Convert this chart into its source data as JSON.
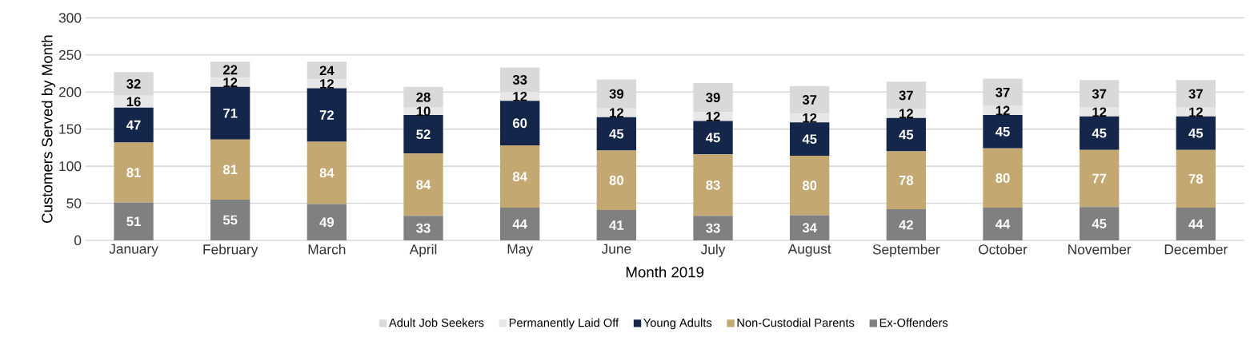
{
  "chart_data": {
    "type": "bar",
    "stacked": true,
    "xlabel": "Month 2019",
    "ylabel": "Customers Served by Month",
    "categories": [
      "January",
      "February",
      "March",
      "April",
      "May",
      "June",
      "July",
      "August",
      "September",
      "October",
      "November",
      "December"
    ],
    "series": [
      {
        "name": "Ex-Offenders",
        "color": "#808080",
        "values": [
          51,
          55,
          49,
          33,
          44,
          41,
          33,
          34,
          42,
          44,
          45,
          44
        ]
      },
      {
        "name": "Non-Custodial Parents",
        "color": "#c4a872",
        "values": [
          81,
          81,
          84,
          84,
          84,
          80,
          83,
          80,
          78,
          80,
          77,
          78
        ]
      },
      {
        "name": "Young Adults",
        "color": "#14264a",
        "values": [
          47,
          71,
          72,
          52,
          60,
          45,
          45,
          45,
          45,
          45,
          45,
          45
        ]
      },
      {
        "name": "Permanently Laid Off",
        "color": "#e7e7e7",
        "values": [
          16,
          12,
          12,
          10,
          12,
          12,
          12,
          12,
          12,
          12,
          12,
          12
        ]
      },
      {
        "name": "Adult Job Seekers",
        "color": "#d9d9d9",
        "values": [
          32,
          22,
          24,
          28,
          33,
          39,
          39,
          37,
          37,
          37,
          37,
          37
        ]
      }
    ],
    "ylim": [
      0,
      300
    ],
    "yticks": [
      0,
      50,
      100,
      150,
      200,
      250,
      300
    ],
    "grid": "y",
    "legend": "bottom",
    "data_labels": true
  }
}
